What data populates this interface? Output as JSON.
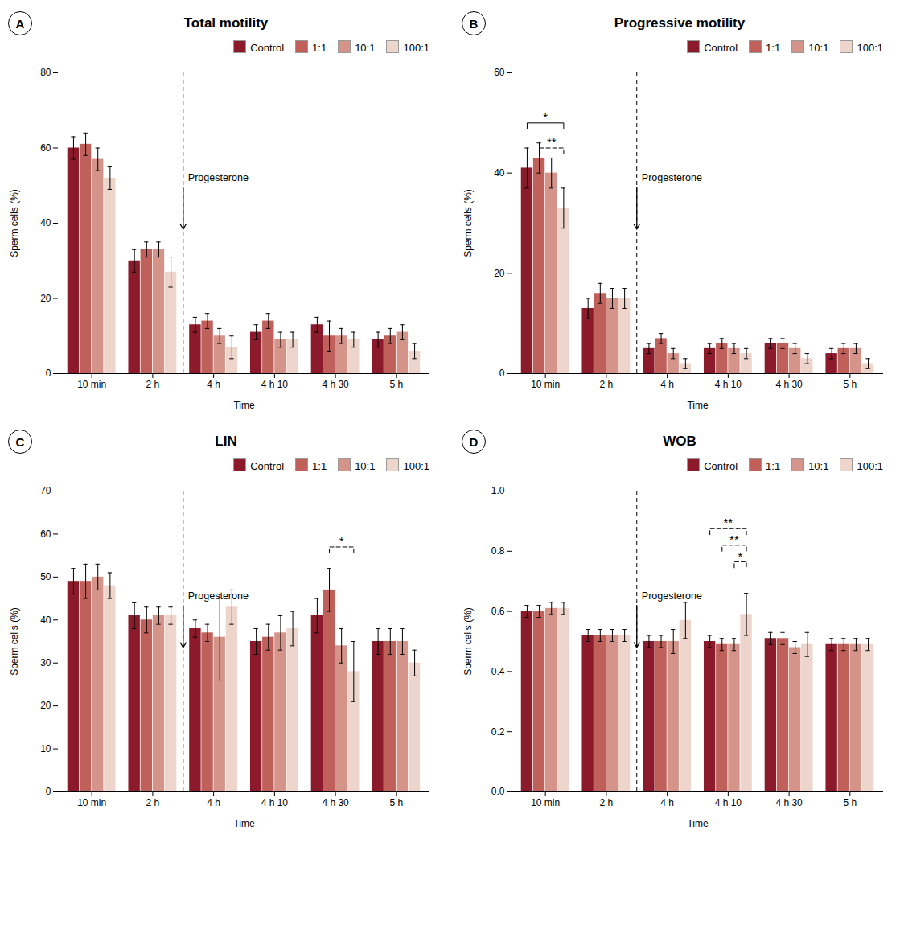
{
  "chart_data": [
    {
      "type": "bar",
      "panel_label": "A",
      "title": "Total motility",
      "xlabel": "Time",
      "ylabel": "Sperm cells (%)",
      "categories": [
        "10 min",
        "2 h",
        "4 h",
        "4 h 10",
        "4 h 30",
        "5 h"
      ],
      "series": [
        {
          "name": "Control",
          "color": "#8B1A2A",
          "values": [
            60,
            30,
            13,
            11,
            13,
            9
          ],
          "errors": [
            3,
            3,
            2,
            2,
            2,
            2
          ]
        },
        {
          "name": "1:1",
          "color": "#C0605A",
          "values": [
            61,
            33,
            14,
            14,
            10,
            10
          ],
          "errors": [
            3,
            2,
            2,
            2,
            4,
            2
          ]
        },
        {
          "name": "10:1",
          "color": "#D4948A",
          "values": [
            57,
            33,
            10,
            9,
            10,
            11
          ],
          "errors": [
            3,
            2,
            2,
            2,
            2,
            2
          ]
        },
        {
          "name": "100:1",
          "color": "#EDD5CC",
          "values": [
            52,
            27,
            7,
            9,
            9,
            6
          ],
          "errors": [
            3,
            4,
            3,
            2,
            2,
            2
          ]
        }
      ],
      "ylim": [
        0,
        80
      ],
      "yticks": [
        0,
        20,
        40,
        60,
        80
      ],
      "grid": false,
      "legend": "upper right",
      "annotations": [
        {
          "text": "Progesterone",
          "between": [
            "2 h",
            "4 h"
          ]
        }
      ],
      "significance": []
    },
    {
      "type": "bar",
      "panel_label": "B",
      "title": "Progressive motility",
      "xlabel": "Time",
      "ylabel": "Sperm cells (%)",
      "categories": [
        "10 min",
        "2 h",
        "4 h",
        "4 h 10",
        "4 h 30",
        "5 h"
      ],
      "series": [
        {
          "name": "Control",
          "color": "#8B1A2A",
          "values": [
            41,
            13,
            5,
            5,
            6,
            4
          ],
          "errors": [
            4,
            2,
            1,
            1,
            1,
            1
          ]
        },
        {
          "name": "1:1",
          "color": "#C0605A",
          "values": [
            43,
            16,
            7,
            6,
            6,
            5
          ],
          "errors": [
            3,
            2,
            1,
            1,
            1,
            1
          ]
        },
        {
          "name": "10:1",
          "color": "#D4948A",
          "values": [
            40,
            15,
            4,
            5,
            5,
            5
          ],
          "errors": [
            3,
            2,
            1,
            1,
            1,
            1
          ]
        },
        {
          "name": "100:1",
          "color": "#EDD5CC",
          "values": [
            33,
            15,
            2,
            4,
            3,
            2
          ],
          "errors": [
            4,
            2,
            1,
            1,
            1,
            1
          ]
        }
      ],
      "ylim": [
        0,
        60
      ],
      "yticks": [
        0,
        20,
        40,
        60
      ],
      "grid": false,
      "legend": "upper right",
      "annotations": [
        {
          "text": "Progesterone",
          "between": [
            "2 h",
            "4 h"
          ]
        }
      ],
      "significance": [
        {
          "category": "10 min",
          "from": "Control",
          "to": "100:1",
          "y": 50,
          "text": "*",
          "line_style": "solid"
        },
        {
          "category": "10 min",
          "from": "1:1",
          "to": "100:1",
          "y": 45,
          "text": "**",
          "line_style": "dashed"
        }
      ]
    },
    {
      "type": "bar",
      "panel_label": "C",
      "title": "LIN",
      "xlabel": "Time",
      "ylabel": "Sperm cells (%)",
      "categories": [
        "10 min",
        "2 h",
        "4 h",
        "4 h 10",
        "4 h 30",
        "5 h"
      ],
      "series": [
        {
          "name": "Control",
          "color": "#8B1A2A",
          "values": [
            49,
            41,
            38,
            35,
            41,
            35
          ],
          "errors": [
            3,
            3,
            2,
            3,
            4,
            3
          ]
        },
        {
          "name": "1:1",
          "color": "#C0605A",
          "values": [
            49,
            40,
            37,
            36,
            47,
            35
          ],
          "errors": [
            4,
            3,
            2,
            3,
            5,
            3
          ]
        },
        {
          "name": "10:1",
          "color": "#D4948A",
          "values": [
            50,
            41,
            36,
            37,
            34,
            35
          ],
          "errors": [
            3,
            2,
            10,
            4,
            4,
            3
          ]
        },
        {
          "name": "100:1",
          "color": "#EDD5CC",
          "values": [
            48,
            41,
            43,
            38,
            28,
            30
          ],
          "errors": [
            3,
            2,
            4,
            4,
            7,
            3
          ]
        }
      ],
      "ylim": [
        0,
        70
      ],
      "yticks": [
        0,
        10,
        20,
        30,
        40,
        50,
        60,
        70
      ],
      "grid": false,
      "legend": "upper right",
      "annotations": [
        {
          "text": "Progesterone",
          "between": [
            "2 h",
            "4 h"
          ]
        }
      ],
      "significance": [
        {
          "category": "4 h 30",
          "from": "1:1",
          "to": "100:1",
          "y": 57,
          "text": "*",
          "line_style": "dashed"
        }
      ]
    },
    {
      "type": "bar",
      "panel_label": "D",
      "title": "WOB",
      "xlabel": "Time",
      "ylabel": "Sperm cells (%)",
      "categories": [
        "10 min",
        "2 h",
        "4 h",
        "4 h 10",
        "4 h 30",
        "5 h"
      ],
      "series": [
        {
          "name": "Control",
          "color": "#8B1A2A",
          "values": [
            0.6,
            0.52,
            0.5,
            0.5,
            0.51,
            0.49
          ],
          "errors": [
            0.02,
            0.02,
            0.02,
            0.02,
            0.02,
            0.02
          ]
        },
        {
          "name": "1:1",
          "color": "#C0605A",
          "values": [
            0.6,
            0.52,
            0.5,
            0.49,
            0.51,
            0.49
          ],
          "errors": [
            0.02,
            0.02,
            0.02,
            0.02,
            0.02,
            0.02
          ]
        },
        {
          "name": "10:1",
          "color": "#D4948A",
          "values": [
            0.61,
            0.52,
            0.5,
            0.49,
            0.48,
            0.49
          ],
          "errors": [
            0.02,
            0.02,
            0.04,
            0.02,
            0.02,
            0.02
          ]
        },
        {
          "name": "100:1",
          "color": "#EDD5CC",
          "values": [
            0.61,
            0.52,
            0.57,
            0.59,
            0.49,
            0.49
          ],
          "errors": [
            0.02,
            0.02,
            0.06,
            0.07,
            0.04,
            0.02
          ]
        }
      ],
      "ylim": [
        0.0,
        1.0
      ],
      "yticks": [
        {
          "value": 0.0,
          "label": "0.0"
        },
        0.2,
        0.4,
        0.6,
        0.8,
        {
          "value": 1.0,
          "label": "1.0"
        }
      ],
      "grid": false,
      "legend": "upper right",
      "annotations": [
        {
          "text": "Progesterone",
          "between": [
            "2 h",
            "4 h"
          ]
        }
      ],
      "significance": [
        {
          "category": "4 h 10",
          "from": "Control",
          "to": "100:1",
          "y": 0.875,
          "text": "**",
          "line_style": "dashed"
        },
        {
          "category": "4 h 10",
          "from": "1:1",
          "to": "100:1",
          "y": 0.82,
          "text": "**",
          "line_style": "dashed"
        },
        {
          "category": "4 h 10",
          "from": "10:1",
          "to": "100:1",
          "y": 0.765,
          "text": "*",
          "line_style": "dashed"
        }
      ]
    }
  ]
}
